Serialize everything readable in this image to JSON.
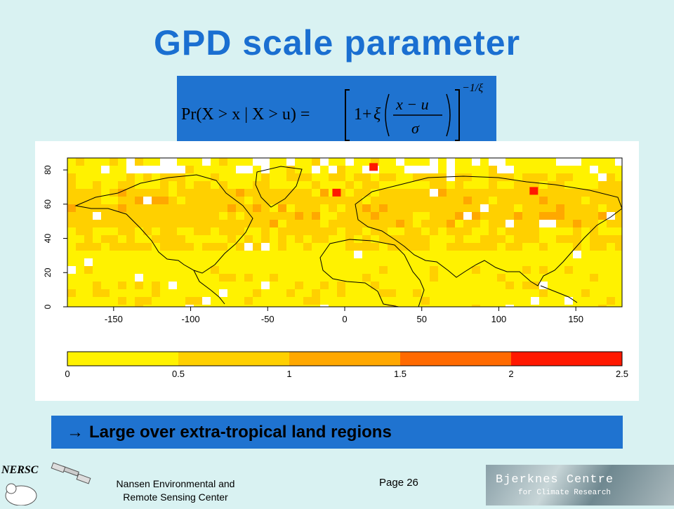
{
  "title": "GPD scale parameter",
  "formula": {
    "lhs": "Pr(X > x | X > u) =",
    "one_plus": "1+",
    "xi": "ξ",
    "numerator": "x − u",
    "denominator": "σ",
    "exponent": "−1/ξ"
  },
  "map": {
    "x_ticks": [
      "-150",
      "-100",
      "-50",
      "0",
      "50",
      "100",
      "150"
    ],
    "y_ticks": [
      "0",
      "20",
      "40",
      "60",
      "80"
    ],
    "colorbar_ticks": [
      "0",
      "0.5",
      "1",
      "1.5",
      "2",
      "2.5"
    ],
    "colorbar_colors": [
      "#fff200",
      "#ffd000",
      "#ffa800",
      "#ff6a00",
      "#ff1800"
    ],
    "colorbar_range": [
      0,
      2.5
    ],
    "lon_range": [
      -180,
      180
    ],
    "lat_range": [
      0,
      87
    ]
  },
  "bullet": {
    "arrow": "→",
    "text": "Large over extra-tropical land regions"
  },
  "footer": {
    "org_line1": "Nansen Environmental and",
    "org_line2": "Remote Sensing Center",
    "page": "Page 26",
    "nersc_logo_text": "NERSC",
    "bjerknes_name": "Bjerknes Centre",
    "bjerknes_sub": "for Climate Research"
  }
}
